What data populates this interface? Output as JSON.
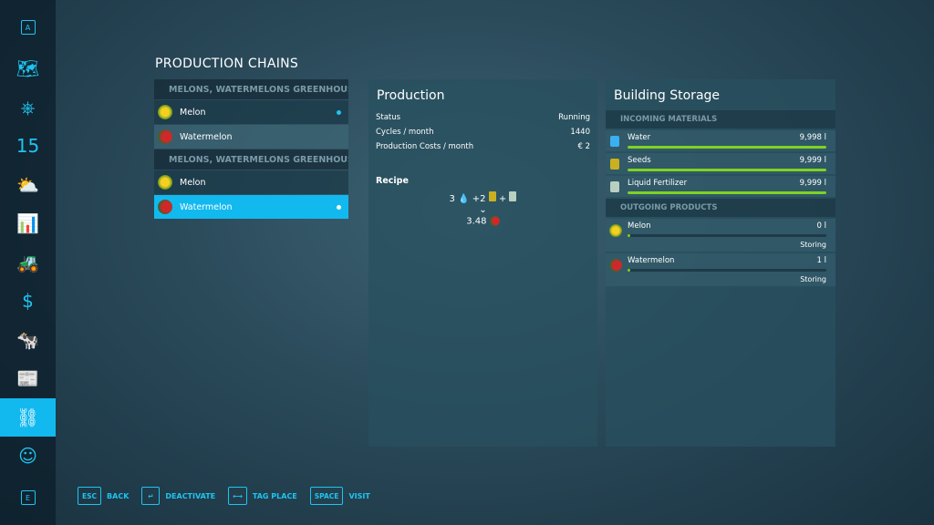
{
  "sidebar": {
    "top_key": "A",
    "bottom_key": "E",
    "items": [
      {
        "icon": "map-icon",
        "glyph": "🗺"
      },
      {
        "icon": "steering-wheel-icon",
        "glyph": "⎈"
      },
      {
        "icon": "calendar-icon",
        "glyph": "15"
      },
      {
        "icon": "weather-icon",
        "glyph": "⛅"
      },
      {
        "icon": "statistics-icon",
        "glyph": "📊"
      },
      {
        "icon": "tractor-icon",
        "glyph": "🚜"
      },
      {
        "icon": "finance-icon",
        "glyph": "$"
      },
      {
        "icon": "animals-icon",
        "glyph": "🐄"
      },
      {
        "icon": "contracts-icon",
        "glyph": "📰"
      },
      {
        "icon": "production-icon",
        "glyph": "⛓",
        "active": true
      },
      {
        "icon": "help-icon",
        "glyph": "☺"
      }
    ]
  },
  "title": "PRODUCTION CHAINS",
  "chains": [
    {
      "group": "MELONS, WATERMELONS GREENHOUSE",
      "items": [
        {
          "label": "Melon",
          "icon": "melon-icon",
          "active": true
        },
        {
          "label": "Watermelon",
          "icon": "watermelon-icon"
        }
      ]
    },
    {
      "group": "MELONS, WATERMELONS GREENHOUSE",
      "items": [
        {
          "label": "Melon",
          "icon": "melon-icon"
        },
        {
          "label": "Watermelon",
          "icon": "watermelon-icon",
          "selected": true,
          "active": true
        }
      ]
    }
  ],
  "production": {
    "title": "Production",
    "rows": [
      {
        "label": "Status",
        "value": "Running"
      },
      {
        "label": "Cycles / month",
        "value": "1440"
      },
      {
        "label": "Production Costs / month",
        "value": "€ 2"
      }
    ],
    "recipe_label": "Recipe",
    "input_water": "3",
    "input_seeds": "+2",
    "plus": "+",
    "output": "3.48"
  },
  "storage": {
    "title": "Building Storage",
    "incoming_label": "INCOMING MATERIALS",
    "outgoing_label": "OUTGOING PRODUCTS",
    "incoming": [
      {
        "label": "Water",
        "value": "9,998 l",
        "fill": 0.9998
      },
      {
        "label": "Seeds",
        "value": "9,999 l",
        "fill": 0.9999
      },
      {
        "label": "Liquid Fertilizer",
        "value": "9,999 l",
        "fill": 0.9999
      }
    ],
    "outgoing": [
      {
        "label": "Melon",
        "value": "0 l",
        "fill": 0.0,
        "mode": "Storing"
      },
      {
        "label": "Watermelon",
        "value": "1 l",
        "fill": 0.0001,
        "mode": "Storing"
      }
    ]
  },
  "footer": [
    {
      "key": "ESC",
      "label": "BACK"
    },
    {
      "key": "↵",
      "label": "DEACTIVATE"
    },
    {
      "key": "⟷",
      "label": "TAG PLACE"
    },
    {
      "key": "SPACE",
      "label": "VISIT"
    }
  ],
  "colors": {
    "accent": "#12b9ef",
    "bar": "#7ed421"
  }
}
